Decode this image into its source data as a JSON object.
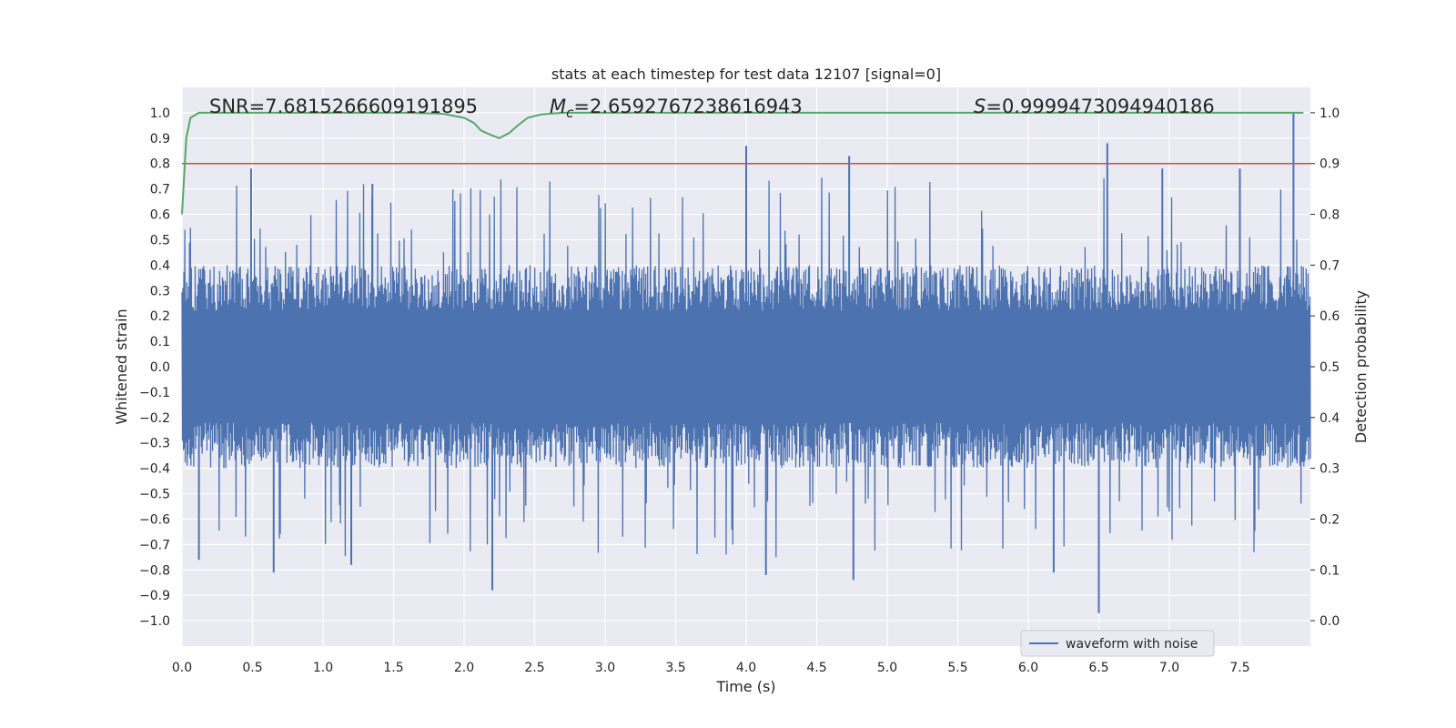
{
  "chart_data": {
    "type": "line",
    "title": "stats at each timestep for test data 12107 [signal=0]",
    "xlabel": "Time (s)",
    "ylabel": "Whitened strain",
    "ylabel_right": "Detection probability",
    "xlim": [
      0.0,
      8.0
    ],
    "ylim": [
      -1.1,
      1.1
    ],
    "ylim_right": [
      -0.05,
      1.05
    ],
    "x_ticks": [
      "0.0",
      "0.5",
      "1.0",
      "1.5",
      "2.0",
      "2.5",
      "3.0",
      "3.5",
      "4.0",
      "4.5",
      "5.0",
      "5.5",
      "6.0",
      "6.5",
      "7.0",
      "7.5"
    ],
    "y_ticks": [
      "−1.0",
      "−0.9",
      "−0.8",
      "−0.7",
      "−0.6",
      "−0.5",
      "−0.4",
      "−0.3",
      "−0.2",
      "−0.1",
      "0.0",
      "0.1",
      "0.2",
      "0.3",
      "0.4",
      "0.5",
      "0.6",
      "0.7",
      "0.8",
      "0.9",
      "1.0"
    ],
    "y_ticks_right": [
      "0.0",
      "0.1",
      "0.2",
      "0.3",
      "0.4",
      "0.5",
      "0.6",
      "0.7",
      "0.8",
      "0.9",
      "1.0"
    ],
    "grid": true,
    "annotations": {
      "snr": "SNR=7.6815266609191895",
      "mc_symbol": "M",
      "mc_sub": "c",
      "mc_value": "=2.6592767238616943",
      "s_symbol": "S",
      "s_value": "=0.9999473094940186"
    },
    "legend": {
      "label": "waveform with noise",
      "position": "lower-right"
    },
    "threshold": {
      "value": 0.9,
      "axis": "right",
      "color": "#c44e52"
    },
    "series": [
      {
        "name": "waveform with noise",
        "axis": "left",
        "color": "#4c72b0",
        "description": "whitened noise waveform, envelope approx ±0.4 with spikes up to ±1.0",
        "spikes": [
          {
            "t": 0.12,
            "v": -0.76
          },
          {
            "t": 0.49,
            "v": 0.78
          },
          {
            "t": 0.65,
            "v": -0.81
          },
          {
            "t": 1.2,
            "v": -0.78
          },
          {
            "t": 1.35,
            "v": 0.72
          },
          {
            "t": 2.2,
            "v": -0.88
          },
          {
            "t": 4.0,
            "v": 0.87
          },
          {
            "t": 4.14,
            "v": -0.82
          },
          {
            "t": 4.73,
            "v": 0.83
          },
          {
            "t": 4.76,
            "v": -0.84
          },
          {
            "t": 6.18,
            "v": -0.81
          },
          {
            "t": 6.5,
            "v": -0.97
          },
          {
            "t": 6.56,
            "v": 0.88
          },
          {
            "t": 6.95,
            "v": 0.78
          },
          {
            "t": 7.5,
            "v": 0.78
          },
          {
            "t": 7.88,
            "v": 1.0
          }
        ]
      },
      {
        "name": "detection probability",
        "axis": "right",
        "color": "#55a868",
        "x": [
          0.0,
          0.03,
          0.06,
          0.12,
          0.3,
          1.6,
          1.85,
          2.0,
          2.07,
          2.12,
          2.2,
          2.25,
          2.32,
          2.38,
          2.45,
          2.55,
          2.7,
          3.0,
          7.95
        ],
        "values": [
          0.8,
          0.95,
          0.99,
          1.0,
          1.0,
          1.0,
          0.998,
          0.99,
          0.98,
          0.965,
          0.955,
          0.95,
          0.96,
          0.975,
          0.99,
          0.997,
          1.0,
          1.0,
          1.0
        ]
      }
    ]
  }
}
